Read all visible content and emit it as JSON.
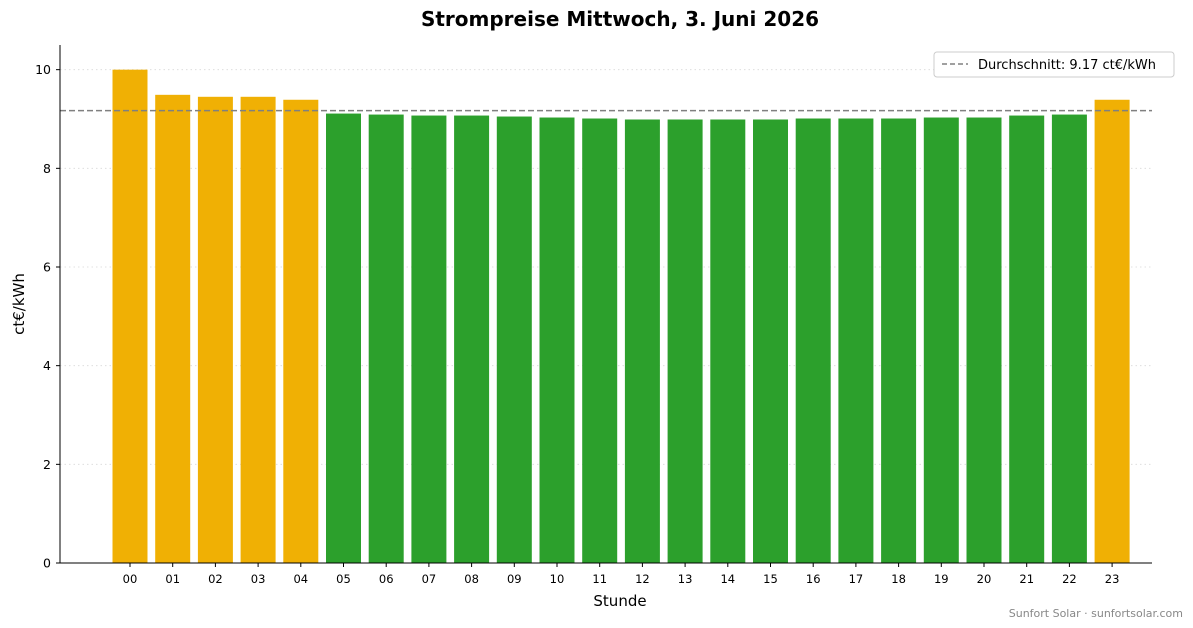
{
  "chart_data": {
    "type": "bar",
    "title": "Strompreise Mittwoch, 3. Juni 2026",
    "xlabel": "Stunde",
    "ylabel": "ct€/kWh",
    "ylim": [
      0,
      10.5
    ],
    "yticks": [
      0,
      2,
      4,
      6,
      8,
      10
    ],
    "categories": [
      "00",
      "01",
      "02",
      "03",
      "04",
      "05",
      "06",
      "07",
      "08",
      "09",
      "10",
      "11",
      "12",
      "13",
      "14",
      "15",
      "16",
      "17",
      "18",
      "19",
      "20",
      "21",
      "22",
      "23"
    ],
    "values": [
      10.0,
      9.49,
      9.45,
      9.45,
      9.39,
      9.11,
      9.09,
      9.07,
      9.07,
      9.05,
      9.03,
      9.01,
      8.99,
      8.99,
      8.99,
      8.99,
      9.01,
      9.01,
      9.01,
      9.03,
      9.03,
      9.07,
      9.09,
      9.39
    ],
    "average": 9.17,
    "legend": {
      "label": "Durchschnitt: 9.17 ct€/kWh",
      "position": "top-right"
    },
    "grid": {
      "y": true,
      "style": "dotted"
    },
    "colors": {
      "above_average": "#f0b004",
      "below_average": "#2ca02c",
      "average_line": "#808080"
    },
    "credit": "Sunfort Solar · sunfortsolar.com"
  }
}
